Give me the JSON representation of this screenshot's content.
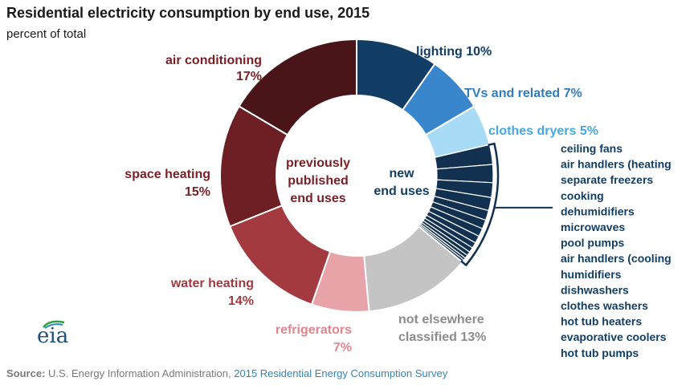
{
  "header": {
    "title": "Residential electricity consumption by end use, 2015",
    "subtitle": "percent of total"
  },
  "footer": {
    "source_label": "Source:",
    "source_org": "U.S. Energy Information Administration,",
    "source_survey": "2015 Residential Energy Consumption Survey",
    "logo": "eia"
  },
  "center_labels": {
    "previous": [
      "previously",
      "published",
      "end uses"
    ],
    "new": [
      "new",
      "end uses"
    ]
  },
  "colors": {
    "air_conditioning": "#4a1518",
    "space_heating": "#6e1f24",
    "water_heating": "#a33a40",
    "refrigerators": "#e8a3a8",
    "not_elsewhere": "#c4c4c4",
    "new_end_uses": "#12304f",
    "lighting": "#123e66",
    "tvs": "#3a86cc",
    "clothes_dryers": "#a8dcf6",
    "label_dark_red": "#7a1f25",
    "label_red": "#a33a40",
    "label_pink": "#e0868d",
    "label_gray": "#8c8c8c",
    "label_navy": "#123e66",
    "label_blue": "#2f7bbf",
    "label_lightblue": "#45a8e0"
  },
  "chart_data": {
    "type": "pie",
    "title": "Residential electricity consumption by end use, 2015",
    "subtitle": "percent of total",
    "unit": "percent",
    "slices": [
      {
        "label": "lighting",
        "value": 10,
        "display": "10%"
      },
      {
        "label": "TVs and related",
        "value": 7,
        "display": "7%"
      },
      {
        "label": "clothes dryers",
        "value": 5,
        "display": "5%"
      },
      {
        "label": "ceiling fans",
        "value": 2.4
      },
      {
        "label": "air handlers (heating",
        "value": 2.2
      },
      {
        "label": "separate freezers",
        "value": 1.8
      },
      {
        "label": "cooking",
        "value": 1.6
      },
      {
        "label": "dehumidifiers",
        "value": 1.2
      },
      {
        "label": "microwaves",
        "value": 1.1
      },
      {
        "label": "pool pumps",
        "value": 1.0
      },
      {
        "label": "air handlers (cooling",
        "value": 0.9
      },
      {
        "label": "humidifiers",
        "value": 0.7
      },
      {
        "label": "dishwashers",
        "value": 0.6
      },
      {
        "label": "clothes washers",
        "value": 0.5
      },
      {
        "label": "hot tub heaters",
        "value": 0.4
      },
      {
        "label": "evaporative coolers",
        "value": 0.3
      },
      {
        "label": "hot tub pumps",
        "value": 0.3
      },
      {
        "label": "not elsewhere classified",
        "value": 13,
        "display": "13%"
      },
      {
        "label": "refrigerators",
        "value": 7,
        "display": "7%"
      },
      {
        "label": "water heating",
        "value": 14,
        "display": "14%"
      },
      {
        "label": "space heating",
        "value": 15,
        "display": "15%"
      },
      {
        "label": "air conditioning",
        "value": 17,
        "display": "17%"
      }
    ],
    "legend": "none"
  }
}
